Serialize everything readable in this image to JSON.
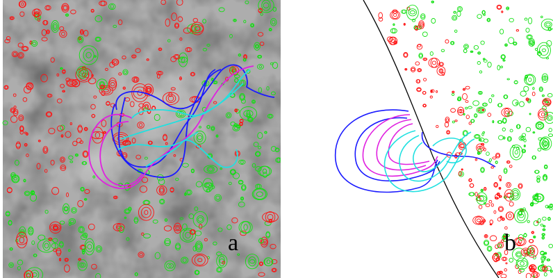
{
  "figure": {
    "panels": [
      {
        "id": "a",
        "label": "a",
        "background": "grayscale-solar-image"
      },
      {
        "id": "b",
        "label": "b",
        "background": "white-limb-view"
      }
    ]
  },
  "colors": {
    "negative_polarity": "#ff1010",
    "positive_polarity": "#10e010",
    "field_line_blue": "#1a1aff",
    "field_line_magenta": "#e020e0",
    "field_line_cyan": "#20e0e0",
    "limb": "#000000"
  }
}
